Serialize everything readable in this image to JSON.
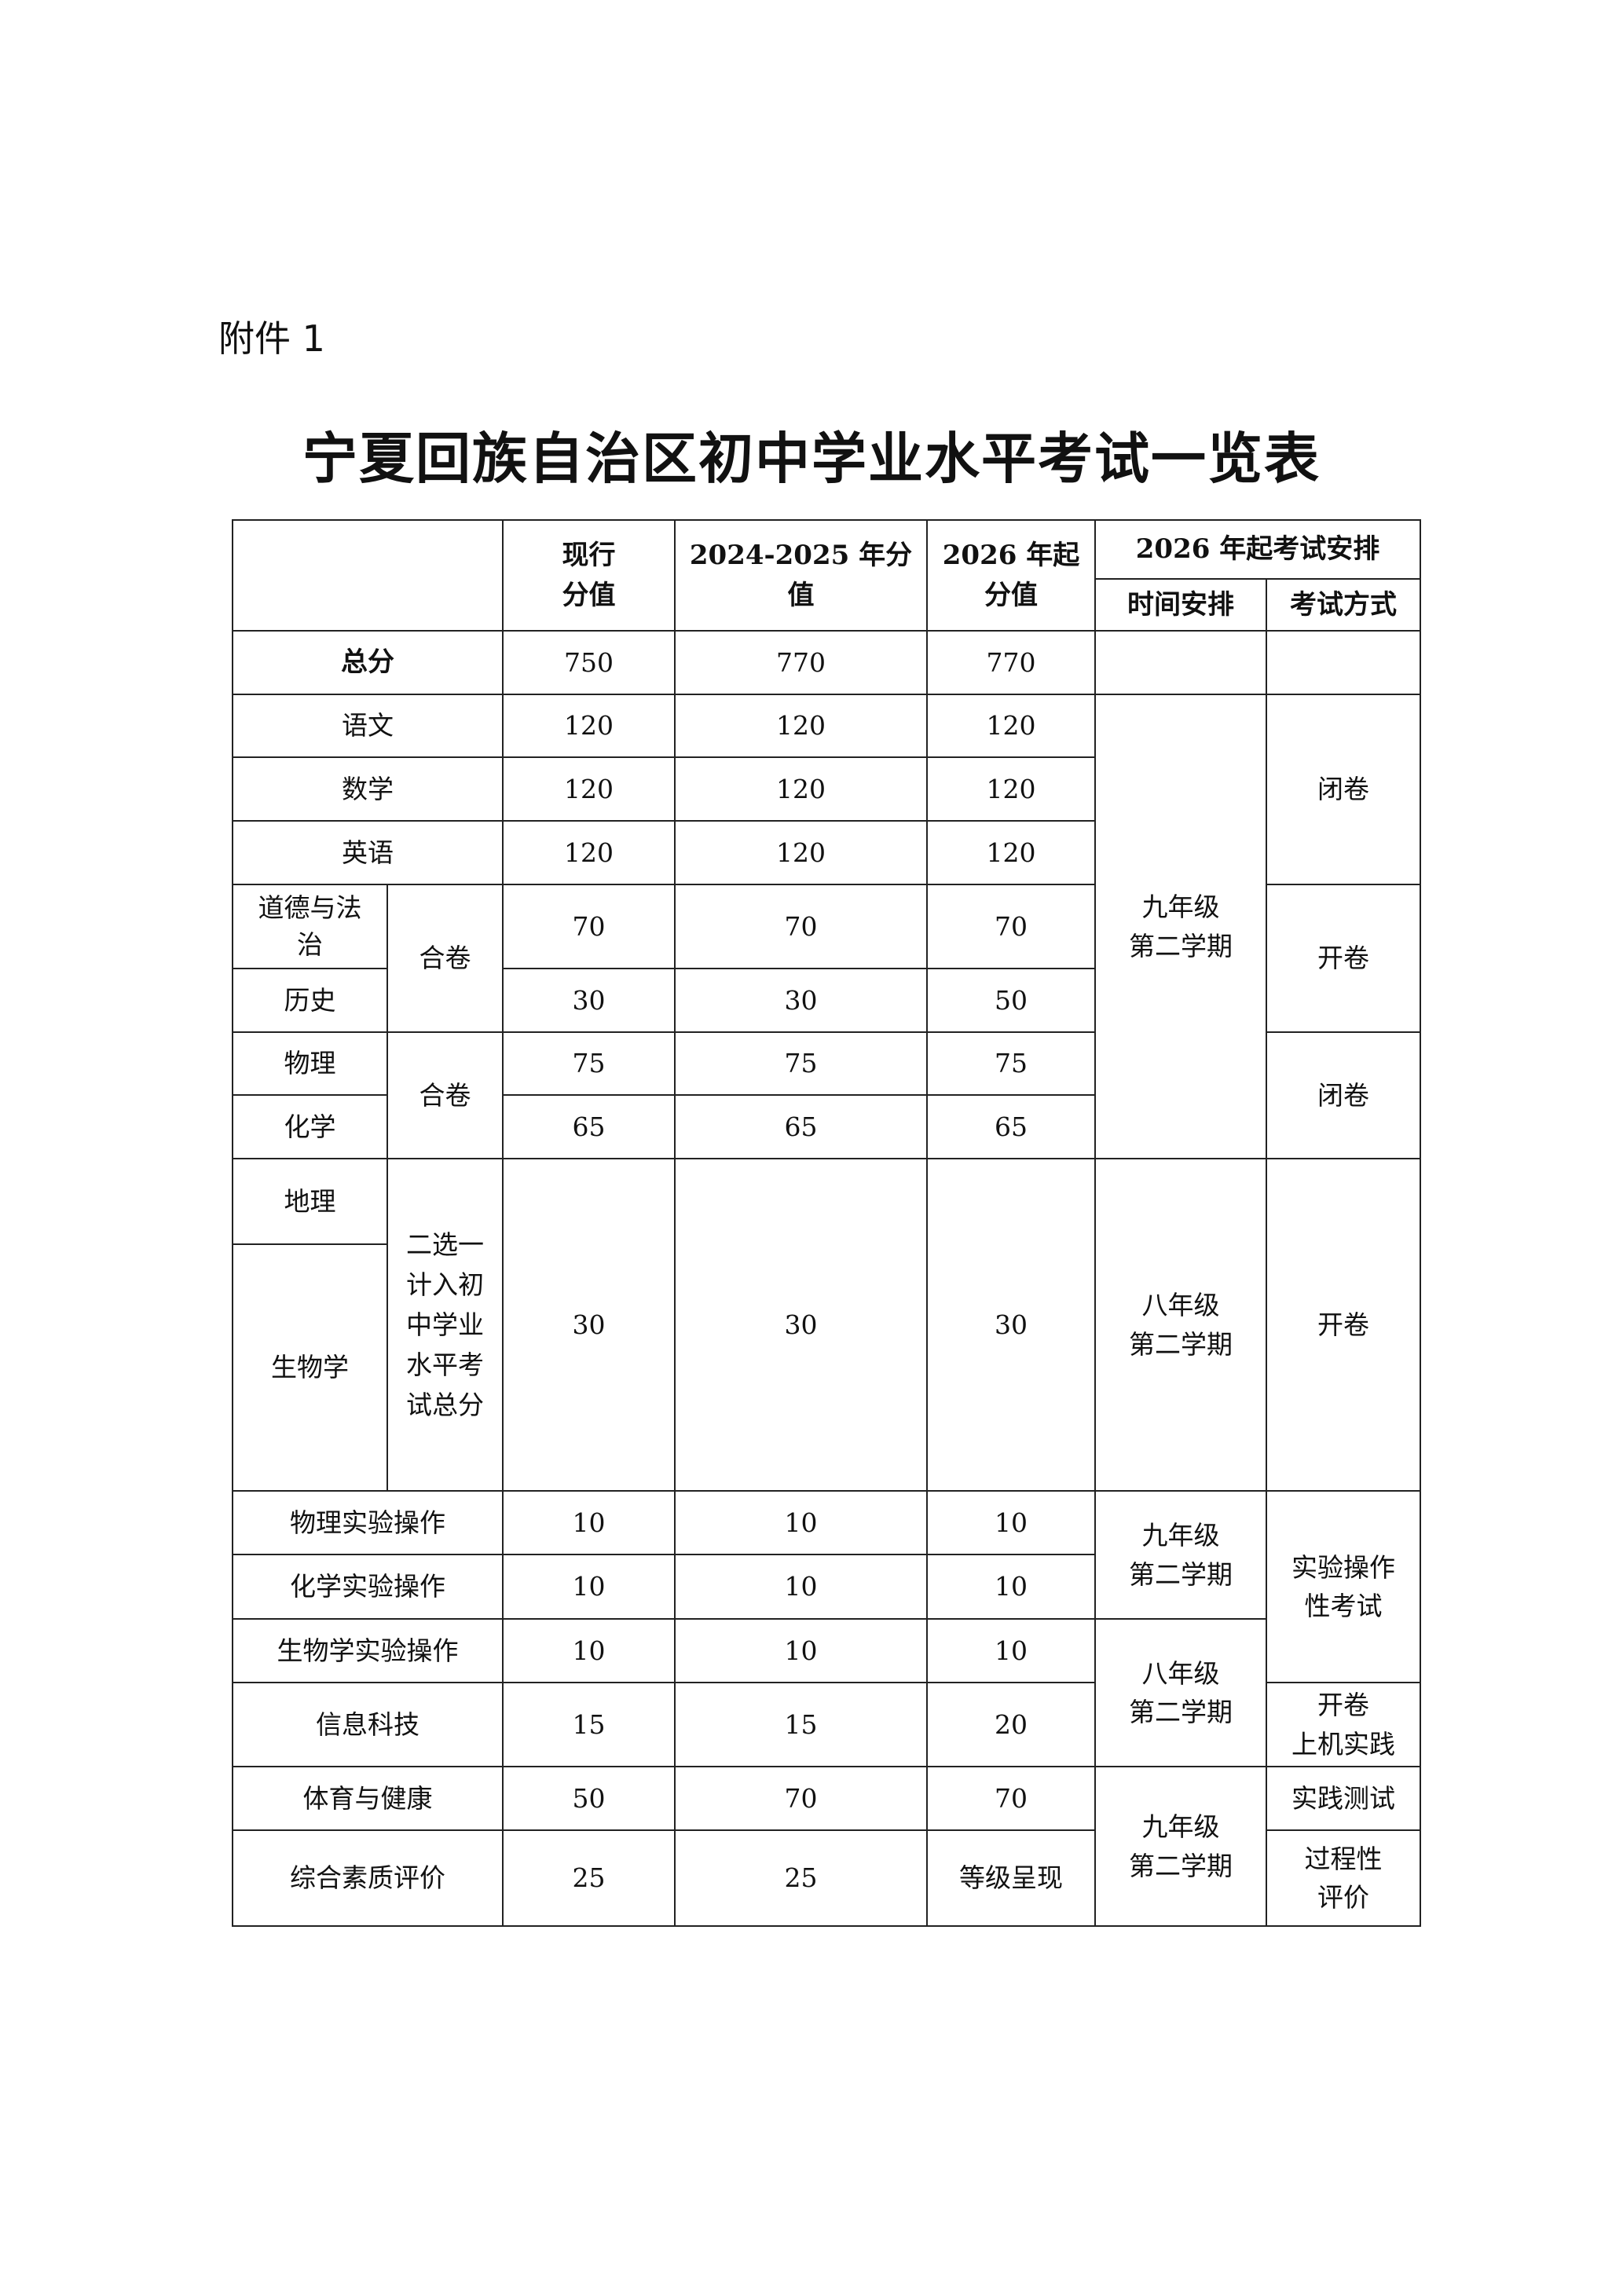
{
  "attachment_label": "附件 1",
  "title": "宁夏回族自治区初中学业水平考试一览表",
  "header": {
    "current": "现行\n分值",
    "y2024_2025": "2024-2025 年分值",
    "from2026": "2026 年起\n分值",
    "arrangement": "2026 年起考试安排",
    "time": "时间安排",
    "method": "考试方式"
  },
  "rows": {
    "total": {
      "subject": "总分",
      "current": "750",
      "y2024": "770",
      "y2026": "770"
    },
    "chinese": {
      "subject": "语文",
      "current": "120",
      "y2024": "120",
      "y2026": "120"
    },
    "math": {
      "subject": "数学",
      "current": "120",
      "y2024": "120",
      "y2026": "120"
    },
    "english": {
      "subject": "英语",
      "current": "120",
      "y2024": "120",
      "y2026": "120"
    },
    "morality": {
      "subject": "道德与法治",
      "current": "70",
      "y2024": "70",
      "y2026": "70"
    },
    "history": {
      "subject": "历史",
      "current": "30",
      "y2024": "30",
      "y2026": "50"
    },
    "physics": {
      "subject": "物理",
      "current": "75",
      "y2024": "75",
      "y2026": "75"
    },
    "chemistry": {
      "subject": "化学",
      "current": "65",
      "y2024": "65",
      "y2026": "65"
    },
    "geography": {
      "subject": "地理"
    },
    "biology": {
      "subject": "生物学"
    },
    "geo_bio": {
      "note": "二选一计入初中学业水平考试总分",
      "current": "30",
      "y2024": "30",
      "y2026": "30"
    },
    "physics_lab": {
      "subject": "物理实验操作",
      "current": "10",
      "y2024": "10",
      "y2026": "10"
    },
    "chemistry_lab": {
      "subject": "化学实验操作",
      "current": "10",
      "y2024": "10",
      "y2026": "10"
    },
    "biology_lab": {
      "subject": "生物学实验操作",
      "current": "10",
      "y2024": "10",
      "y2026": "10"
    },
    "it": {
      "subject": "信息科技",
      "current": "15",
      "y2024": "15",
      "y2026": "20"
    },
    "pe": {
      "subject": "体育与健康",
      "current": "50",
      "y2024": "70",
      "y2026": "70"
    },
    "comprehensive": {
      "subject": "综合素质评价",
      "current": "25",
      "y2024": "25",
      "y2026": "等级呈现"
    }
  },
  "groups": {
    "combined_1": "合卷",
    "combined_2": "合卷",
    "time_g9_a": "九年级\n第二学期",
    "time_g8_a": "八年级\n第二学期",
    "time_g9_b": "九年级\n第二学期",
    "time_g8_b": "八年级\n第二学期",
    "time_g9_c": "九年级\n第二学期",
    "method_closed_a": "闭卷",
    "method_open_a": "开卷",
    "method_closed_b": "闭卷",
    "method_open_b": "开卷",
    "method_lab": "实验操作\n性考试",
    "method_it": "开卷\n上机实践",
    "method_pe": "实践测试",
    "method_process": "过程性\n评价"
  }
}
